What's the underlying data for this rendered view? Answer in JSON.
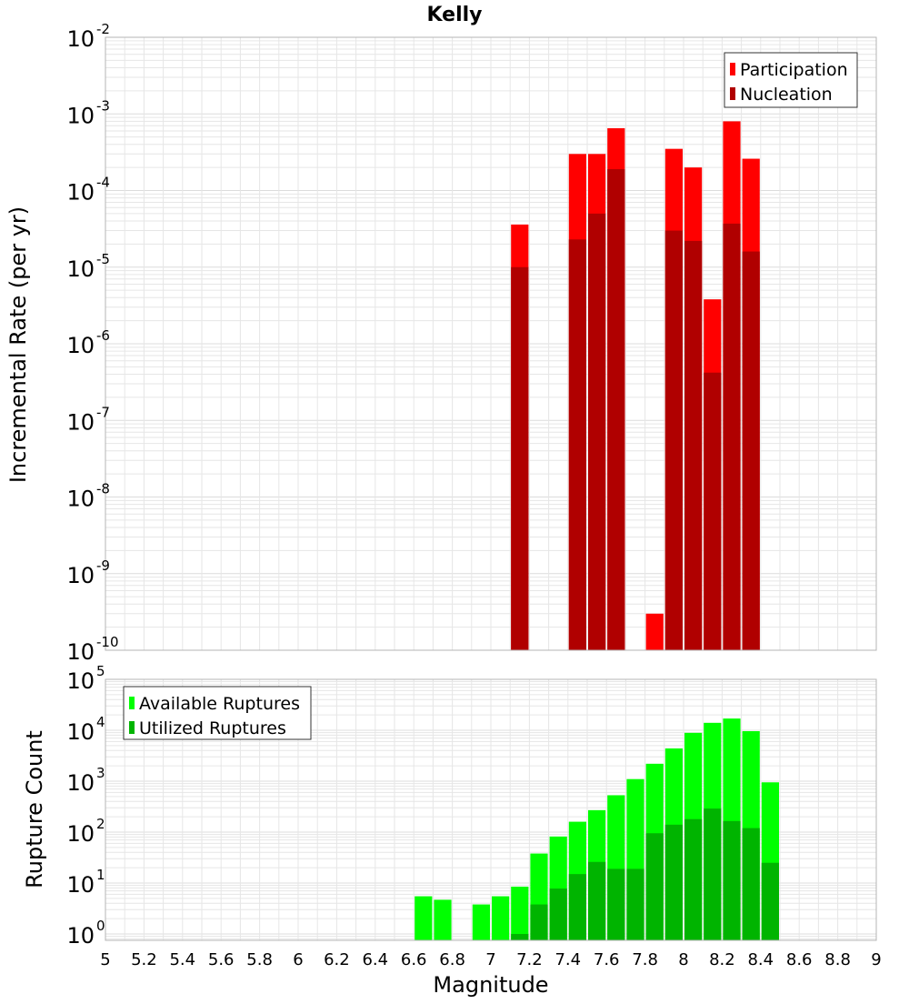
{
  "colors": {
    "participation": "#ff0000",
    "nucleation": "#b00000",
    "available": "#00ff00",
    "utilized": "#00b400",
    "grid": "#e6e6e6",
    "frame": "#b4b4b4"
  },
  "chart_data": [
    {
      "type": "bar",
      "title": "Kelly",
      "xlabel": "",
      "ylabel": "Incremental Rate (per yr)",
      "yscale": "log",
      "ylim": [
        1e-10,
        0.01
      ],
      "xlim": [
        5,
        9
      ],
      "grid": true,
      "legend_position": "top-right",
      "y_tick_exponents": [
        "-10",
        "-9",
        "-8",
        "-7",
        "-6",
        "-5",
        "-4",
        "-3",
        "-2"
      ],
      "y_tick_base": "10",
      "series": [
        {
          "name": "Participation",
          "x": [
            7.15,
            7.45,
            7.55,
            7.65,
            7.85,
            7.95,
            8.05,
            8.15,
            8.25,
            8.35
          ],
          "values": [
            3.6e-05,
            0.0003,
            0.0003,
            0.00065,
            3e-10,
            0.00035,
            0.0002,
            3.8e-06,
            0.0008,
            0.00026
          ]
        },
        {
          "name": "Nucleation",
          "x": [
            7.15,
            7.45,
            7.55,
            7.65,
            7.95,
            8.05,
            8.15,
            8.25,
            8.35
          ],
          "values": [
            1e-05,
            2.3e-05,
            5e-05,
            0.00019,
            3e-05,
            2.2e-05,
            4.2e-07,
            3.7e-05,
            1.6e-05
          ]
        }
      ]
    },
    {
      "type": "bar",
      "title": "",
      "xlabel": "Magnitude",
      "ylabel": "Rupture Count",
      "yscale": "log",
      "ylim": [
        0.75,
        100000
      ],
      "xlim": [
        5,
        9
      ],
      "grid": true,
      "legend_position": "top-left",
      "x_ticks": [
        "5",
        "5.2",
        "5.4",
        "5.6",
        "5.8",
        "6",
        "6.2",
        "6.4",
        "6.6",
        "6.8",
        "7",
        "7.2",
        "7.4",
        "7.6",
        "7.8",
        "8",
        "8.2",
        "8.4",
        "8.6",
        "8.8",
        "9"
      ],
      "y_tick_exponents": [
        "0",
        "1",
        "2",
        "3",
        "4",
        "5"
      ],
      "y_tick_base": "10",
      "series": [
        {
          "name": "Available Ruptures",
          "x": [
            6.65,
            6.75,
            6.95,
            7.05,
            7.15,
            7.25,
            7.35,
            7.45,
            7.55,
            7.65,
            7.75,
            7.85,
            7.95,
            8.05,
            8.15,
            8.25,
            8.35,
            8.45
          ],
          "values": [
            5.5,
            4.7,
            3.8,
            5.5,
            8.5,
            38,
            82,
            160,
            270,
            530,
            1100,
            2200,
            4400,
            8900,
            14000,
            17000,
            9600,
            950
          ]
        },
        {
          "name": "Utilized Ruptures",
          "x": [
            7.15,
            7.25,
            7.35,
            7.45,
            7.55,
            7.65,
            7.75,
            7.85,
            7.95,
            8.05,
            8.15,
            8.25,
            8.35,
            8.45
          ],
          "values": [
            1.0,
            3.8,
            7.8,
            15,
            26,
            19,
            19,
            95,
            140,
            180,
            290,
            165,
            120,
            25
          ]
        }
      ]
    }
  ]
}
